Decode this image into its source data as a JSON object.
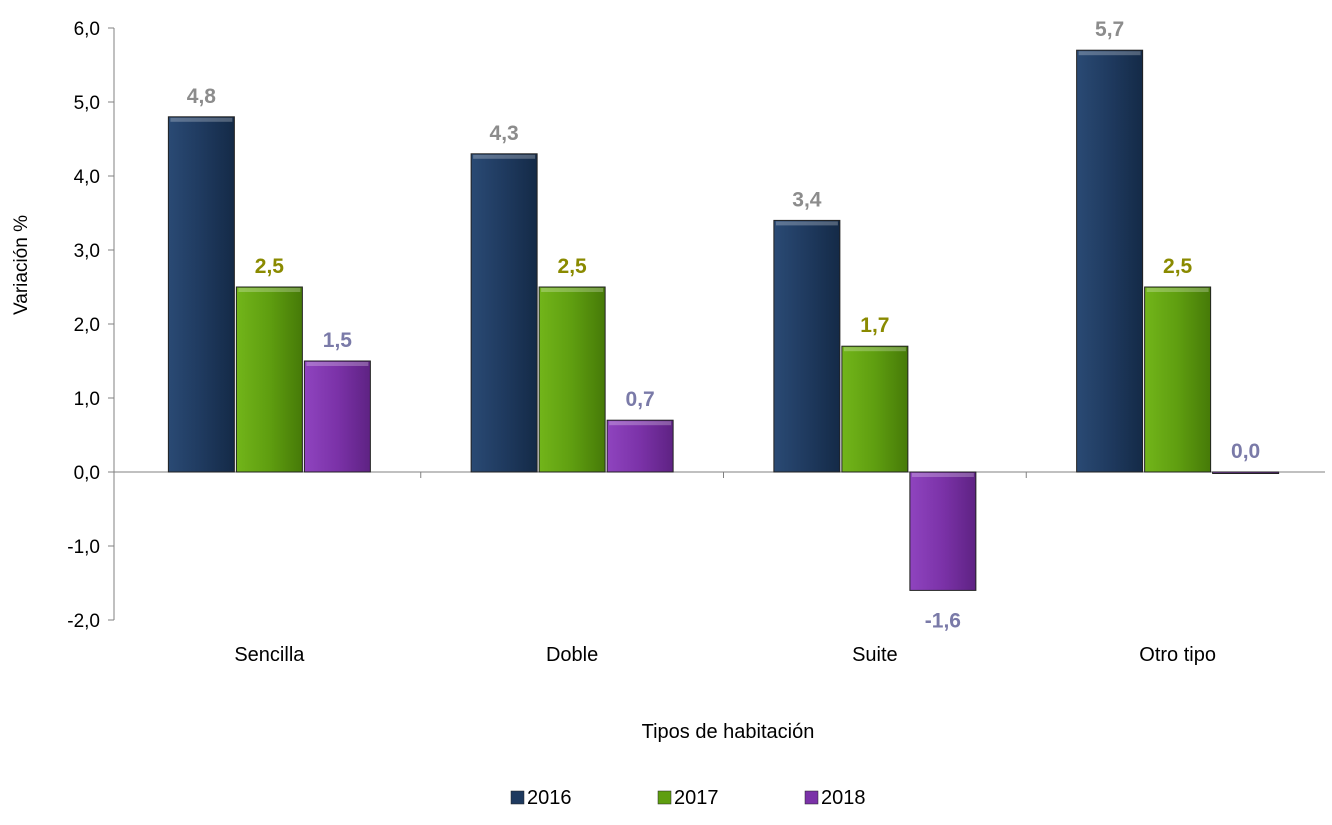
{
  "chart_data": {
    "type": "bar",
    "title": "",
    "xlabel": "Tipos de habitación",
    "ylabel": "Variación %",
    "ylim": [
      -2.0,
      6.0
    ],
    "yticks": [
      -2.0,
      -1.0,
      0.0,
      1.0,
      2.0,
      3.0,
      4.0,
      5.0,
      6.0
    ],
    "ytick_labels": [
      "-2,0",
      "-1,0",
      "0,0",
      "1,0",
      "2,0",
      "3,0",
      "4,0",
      "5,0",
      "6,0"
    ],
    "grid": false,
    "legend_position": "bottom",
    "categories": [
      "Sencilla",
      "Doble",
      "Suite",
      "Otro tipo"
    ],
    "series": [
      {
        "name": "2016",
        "values": [
          4.8,
          4.3,
          3.4,
          5.7
        ],
        "labels": [
          "4,8",
          "4,3",
          "3,4",
          "5,7"
        ],
        "color": "#1f3a5f",
        "label_color": "#8c8c8c"
      },
      {
        "name": "2017",
        "values": [
          2.5,
          2.5,
          1.7,
          2.5
        ],
        "labels": [
          "2,5",
          "2,5",
          "1,7",
          "2,5"
        ],
        "color": "#5f9e10",
        "label_color": "#8a8a00"
      },
      {
        "name": "2018",
        "values": [
          1.5,
          0.7,
          -1.6,
          0.0
        ],
        "labels": [
          "1,5",
          "0,7",
          "-1,6",
          "0,0"
        ],
        "color": "#7b32a8",
        "label_color": "#7a7aa8"
      }
    ]
  }
}
